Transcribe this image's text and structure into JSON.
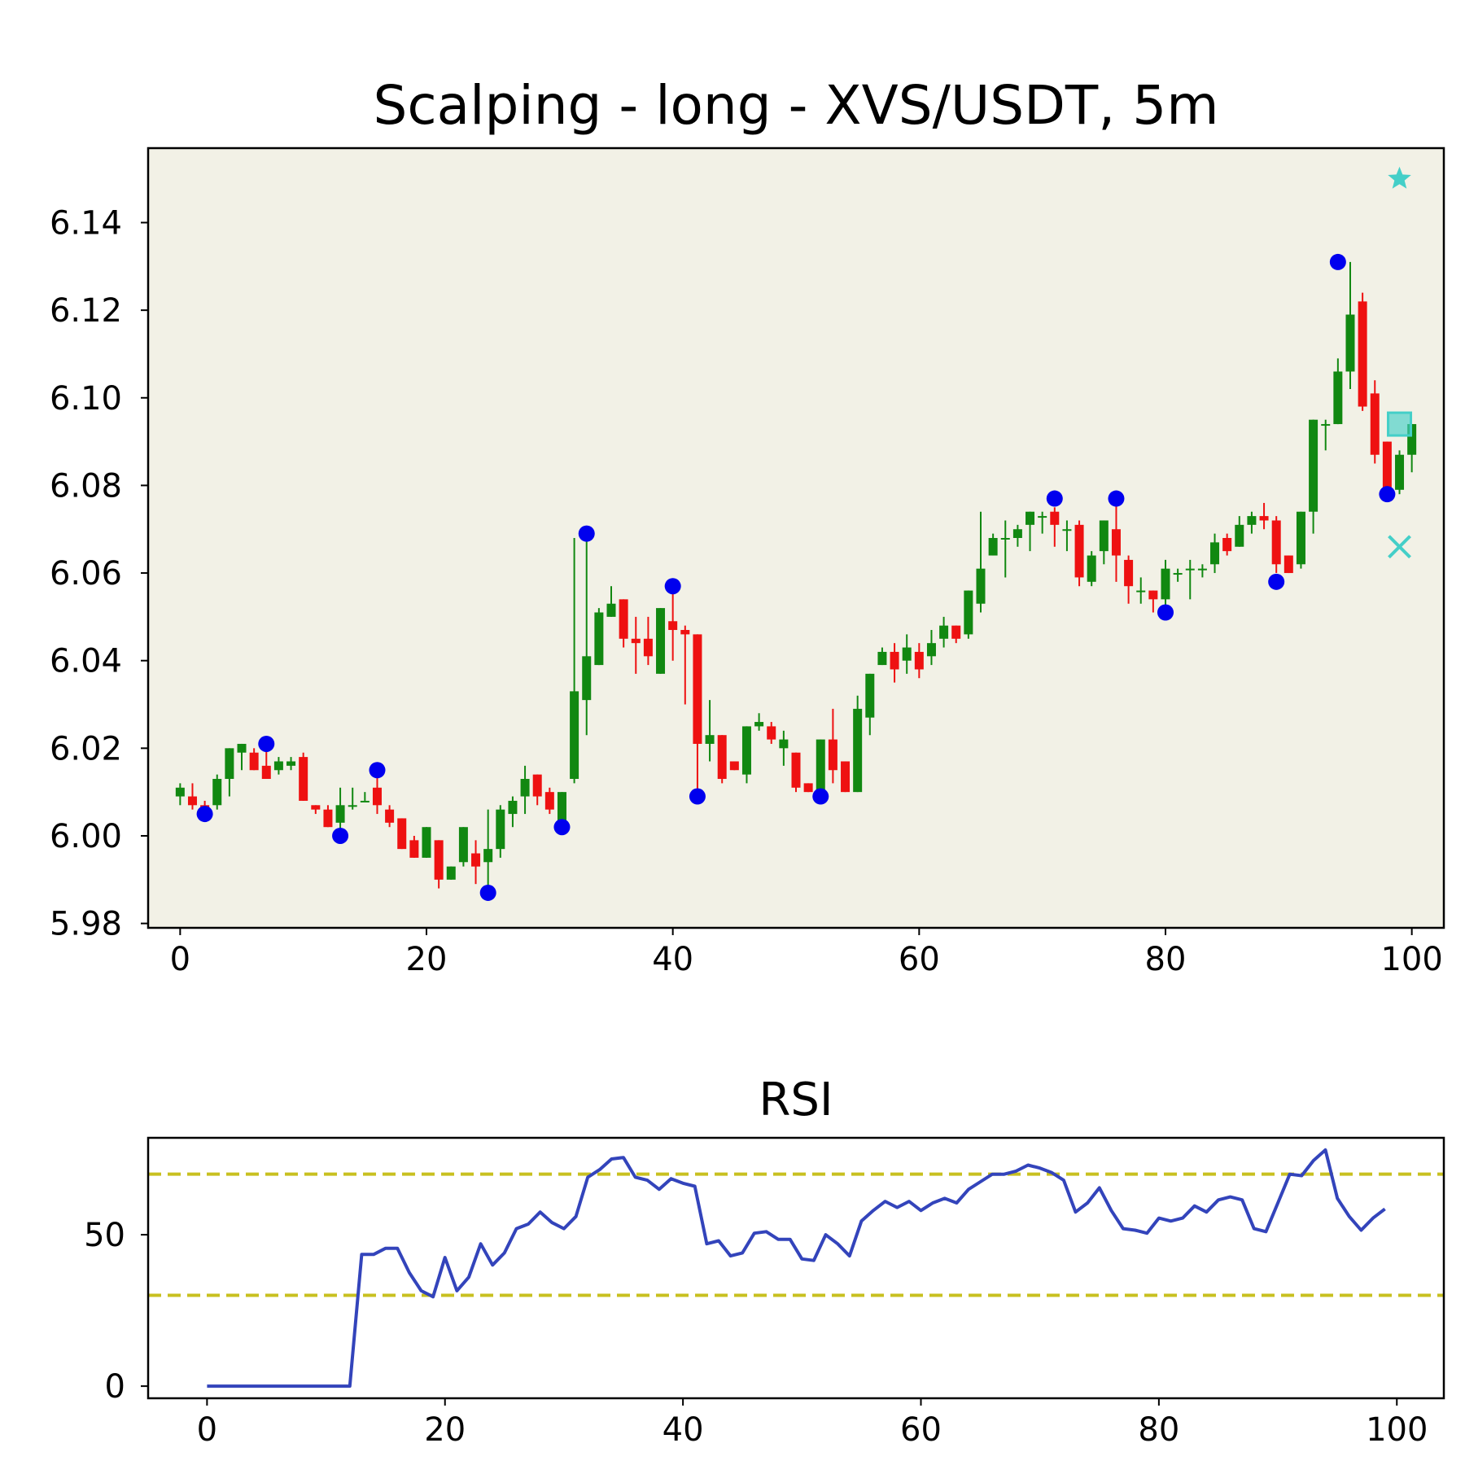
{
  "chart_data": [
    {
      "type": "candlestick",
      "title": "Scalping - long - XVS/USDT, 5m",
      "xlim": [
        -2.6,
        102.6
      ],
      "ylim": [
        5.979,
        6.157
      ],
      "x_ticks": [
        0,
        20,
        40,
        60,
        80,
        100
      ],
      "y_ticks": [
        5.98,
        6.0,
        6.02,
        6.04,
        6.06,
        6.08,
        6.1,
        6.12,
        6.14
      ],
      "background": "#f2f1e6",
      "colors": {
        "up": "#118811",
        "down": "#ee1111",
        "marker": "#0000ee",
        "signal": "#44cfc8"
      },
      "candles": [
        [
          6.009,
          6.012,
          6.007,
          6.011
        ],
        [
          6.009,
          6.012,
          6.006,
          6.007
        ],
        [
          6.007,
          6.008,
          6.005,
          6.006
        ],
        [
          6.007,
          6.014,
          6.006,
          6.013
        ],
        [
          6.013,
          6.02,
          6.009,
          6.02
        ],
        [
          6.019,
          6.021,
          6.015,
          6.021
        ],
        [
          6.019,
          6.02,
          6.015,
          6.015
        ],
        [
          6.016,
          6.021,
          6.013,
          6.013
        ],
        [
          6.015,
          6.018,
          6.014,
          6.017
        ],
        [
          6.016,
          6.018,
          6.015,
          6.017
        ],
        [
          6.018,
          6.019,
          6.008,
          6.008
        ],
        [
          6.007,
          6.007,
          6.005,
          6.006
        ],
        [
          6.006,
          6.007,
          6.002,
          6.002
        ],
        [
          6.003,
          6.011,
          6.0,
          6.007
        ],
        [
          6.007,
          6.011,
          6.006,
          6.007
        ],
        [
          6.008,
          6.01,
          6.008,
          6.008
        ],
        [
          6.011,
          6.015,
          6.005,
          6.007
        ],
        [
          6.006,
          6.007,
          6.002,
          6.003
        ],
        [
          6.004,
          6.004,
          5.997,
          5.997
        ],
        [
          5.999,
          6.0,
          5.995,
          5.995
        ],
        [
          5.995,
          6.002,
          5.995,
          6.002
        ],
        [
          5.999,
          5.999,
          5.988,
          5.99
        ],
        [
          5.99,
          5.993,
          5.99,
          5.993
        ],
        [
          5.994,
          6.002,
          5.993,
          6.002
        ],
        [
          5.996,
          5.999,
          5.989,
          5.993
        ],
        [
          5.994,
          6.006,
          5.987,
          5.997
        ],
        [
          5.997,
          6.007,
          5.995,
          6.006
        ],
        [
          6.005,
          6.009,
          6.002,
          6.008
        ],
        [
          6.009,
          6.016,
          6.005,
          6.013
        ],
        [
          6.014,
          6.014,
          6.007,
          6.009
        ],
        [
          6.01,
          6.011,
          6.005,
          6.006
        ],
        [
          6.003,
          6.01,
          6.002,
          6.01
        ],
        [
          6.013,
          6.068,
          6.012,
          6.033
        ],
        [
          6.031,
          6.069,
          6.023,
          6.041
        ],
        [
          6.039,
          6.052,
          6.039,
          6.051
        ],
        [
          6.05,
          6.057,
          6.05,
          6.053
        ],
        [
          6.054,
          6.054,
          6.043,
          6.045
        ],
        [
          6.045,
          6.05,
          6.037,
          6.044
        ],
        [
          6.045,
          6.05,
          6.039,
          6.041
        ],
        [
          6.037,
          6.052,
          6.037,
          6.052
        ],
        [
          6.049,
          6.057,
          6.04,
          6.047
        ],
        [
          6.047,
          6.048,
          6.03,
          6.046
        ],
        [
          6.046,
          6.046,
          6.01,
          6.021
        ],
        [
          6.021,
          6.031,
          6.017,
          6.023
        ],
        [
          6.023,
          6.023,
          6.012,
          6.013
        ],
        [
          6.017,
          6.017,
          6.015,
          6.015
        ],
        [
          6.014,
          6.025,
          6.012,
          6.025
        ],
        [
          6.025,
          6.028,
          6.024,
          6.026
        ],
        [
          6.025,
          6.026,
          6.021,
          6.022
        ],
        [
          6.02,
          6.024,
          6.016,
          6.022
        ],
        [
          6.019,
          6.019,
          6.01,
          6.011
        ],
        [
          6.012,
          6.012,
          6.01,
          6.01
        ],
        [
          6.01,
          6.022,
          6.009,
          6.022
        ],
        [
          6.022,
          6.029,
          6.012,
          6.015
        ],
        [
          6.017,
          6.017,
          6.01,
          6.01
        ],
        [
          6.01,
          6.032,
          6.01,
          6.029
        ],
        [
          6.027,
          6.037,
          6.023,
          6.037
        ],
        [
          6.039,
          6.043,
          6.039,
          6.042
        ],
        [
          6.042,
          6.044,
          6.035,
          6.038
        ],
        [
          6.04,
          6.046,
          6.037,
          6.043
        ],
        [
          6.042,
          6.044,
          6.036,
          6.038
        ],
        [
          6.041,
          6.047,
          6.039,
          6.044
        ],
        [
          6.045,
          6.05,
          6.043,
          6.048
        ],
        [
          6.048,
          6.048,
          6.044,
          6.045
        ],
        [
          6.046,
          6.056,
          6.045,
          6.056
        ],
        [
          6.053,
          6.074,
          6.051,
          6.061
        ],
        [
          6.064,
          6.069,
          6.064,
          6.068
        ],
        [
          6.068,
          6.072,
          6.059,
          6.068
        ],
        [
          6.068,
          6.071,
          6.066,
          6.07
        ],
        [
          6.071,
          6.074,
          6.065,
          6.074
        ],
        [
          6.073,
          6.074,
          6.069,
          6.073
        ],
        [
          6.074,
          6.075,
          6.066,
          6.071
        ],
        [
          6.07,
          6.072,
          6.065,
          6.07
        ],
        [
          6.071,
          6.072,
          6.057,
          6.059
        ],
        [
          6.058,
          6.065,
          6.057,
          6.064
        ],
        [
          6.065,
          6.072,
          6.062,
          6.072
        ],
        [
          6.07,
          6.076,
          6.058,
          6.064
        ],
        [
          6.063,
          6.064,
          6.053,
          6.057
        ],
        [
          6.056,
          6.059,
          6.053,
          6.056
        ],
        [
          6.056,
          6.056,
          6.051,
          6.054
        ],
        [
          6.054,
          6.063,
          6.051,
          6.061
        ],
        [
          6.06,
          6.061,
          6.058,
          6.06
        ],
        [
          6.061,
          6.063,
          6.054,
          6.061
        ],
        [
          6.061,
          6.062,
          6.059,
          6.061
        ],
        [
          6.062,
          6.069,
          6.06,
          6.067
        ],
        [
          6.068,
          6.069,
          6.064,
          6.065
        ],
        [
          6.066,
          6.073,
          6.066,
          6.071
        ],
        [
          6.071,
          6.074,
          6.069,
          6.073
        ],
        [
          6.073,
          6.076,
          6.07,
          6.072
        ],
        [
          6.072,
          6.073,
          6.06,
          6.062
        ],
        [
          6.064,
          6.064,
          6.06,
          6.06
        ],
        [
          6.062,
          6.074,
          6.061,
          6.074
        ],
        [
          6.074,
          6.095,
          6.069,
          6.095
        ],
        [
          6.094,
          6.095,
          6.088,
          6.094
        ],
        [
          6.094,
          6.109,
          6.094,
          6.106
        ],
        [
          6.106,
          6.131,
          6.102,
          6.119
        ],
        [
          6.122,
          6.124,
          6.097,
          6.098
        ],
        [
          6.101,
          6.104,
          6.085,
          6.087
        ],
        [
          6.09,
          6.09,
          6.078,
          6.078
        ],
        [
          6.079,
          6.088,
          6.078,
          6.087
        ],
        [
          6.087,
          6.094,
          6.083,
          6.094
        ]
      ],
      "pivot_points": [
        {
          "x": 2,
          "y": 6.005
        },
        {
          "x": 7,
          "y": 6.021
        },
        {
          "x": 13,
          "y": 6.0
        },
        {
          "x": 16,
          "y": 6.015
        },
        {
          "x": 25,
          "y": 5.987
        },
        {
          "x": 31,
          "y": 6.002
        },
        {
          "x": 33,
          "y": 6.069
        },
        {
          "x": 40,
          "y": 6.057
        },
        {
          "x": 42,
          "y": 6.009
        },
        {
          "x": 52,
          "y": 6.009
        },
        {
          "x": 71,
          "y": 6.077
        },
        {
          "x": 76,
          "y": 6.077
        },
        {
          "x": 80,
          "y": 6.051
        },
        {
          "x": 89,
          "y": 6.058
        },
        {
          "x": 94,
          "y": 6.131
        },
        {
          "x": 98,
          "y": 6.078
        }
      ],
      "signals": [
        {
          "shape": "star",
          "x": 99,
          "y": 6.15
        },
        {
          "shape": "square",
          "x": 99,
          "y": 6.094
        },
        {
          "shape": "x",
          "x": 99,
          "y": 6.066
        }
      ]
    },
    {
      "type": "line",
      "title": "RSI",
      "xlim": [
        -4.95,
        103.95
      ],
      "ylim": [
        -4,
        82
      ],
      "x_ticks": [
        0,
        20,
        40,
        60,
        80,
        100
      ],
      "y_ticks": [
        0,
        50
      ],
      "threshold_lines": [
        70,
        30
      ],
      "colors": {
        "line": "#3344bb",
        "threshold": "#c8c020"
      },
      "x": [
        0,
        1,
        2,
        3,
        4,
        5,
        6,
        7,
        8,
        9,
        10,
        11,
        12,
        13,
        14,
        15,
        16,
        17,
        18,
        19,
        20,
        21,
        22,
        23,
        24,
        25,
        26,
        27,
        28,
        29,
        30,
        31,
        32,
        33,
        34,
        35,
        36,
        37,
        38,
        39,
        40,
        41,
        42,
        43,
        44,
        45,
        46,
        47,
        48,
        49,
        50,
        51,
        52,
        53,
        54,
        55,
        56,
        57,
        58,
        59,
        60,
        61,
        62,
        63,
        64,
        65,
        66,
        67,
        68,
        69,
        70,
        71,
        72,
        73,
        74,
        75,
        76,
        77,
        78,
        79,
        80,
        81,
        82,
        83,
        84,
        85,
        86,
        87,
        88,
        89,
        90,
        91,
        92,
        93,
        94,
        95,
        96,
        97,
        98,
        99
      ],
      "values": [
        0,
        0,
        0,
        0,
        0,
        0,
        0,
        0,
        0,
        0,
        0,
        0,
        0,
        43.5,
        43.5,
        45.5,
        45.5,
        37.5,
        31.5,
        29.5,
        42.5,
        31.5,
        36,
        47,
        40,
        44,
        52,
        53.5,
        57.5,
        54,
        52,
        56,
        69,
        71.5,
        75,
        75.5,
        69,
        68,
        65,
        68.5,
        67,
        66,
        47,
        48,
        43,
        44,
        50.5,
        51,
        48.5,
        48.5,
        42,
        41.5,
        50,
        47,
        43,
        54.5,
        58,
        61,
        59,
        61,
        58,
        60.5,
        62,
        60.5,
        65,
        67.5,
        70,
        70,
        71,
        73,
        72,
        70.5,
        68,
        57.5,
        60.5,
        65.5,
        58,
        52,
        51.5,
        50.5,
        55.5,
        54.5,
        55.5,
        59.5,
        57.5,
        61.5,
        62.5,
        61.5,
        52,
        51,
        60.5,
        70,
        69.5,
        74.5,
        78,
        62,
        56,
        51.5,
        55.5,
        58.5
      ]
    }
  ]
}
